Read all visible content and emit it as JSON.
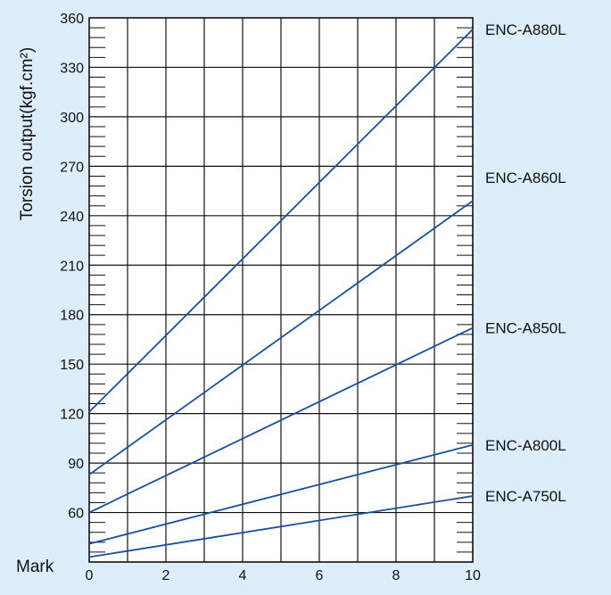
{
  "chart_data": {
    "type": "line",
    "title": "",
    "ylabel": "Torsion output(kgf.cm²)",
    "xlabel": "Mark",
    "xlim": [
      0,
      10
    ],
    "ylim": [
      30,
      360
    ],
    "x_ticks": [
      0,
      2,
      4,
      6,
      8,
      10
    ],
    "y_ticks": [
      60,
      90,
      120,
      150,
      180,
      210,
      240,
      270,
      300,
      330,
      360
    ],
    "grid": true,
    "legend": "series labels at right end of lines",
    "line_color": "#1a4fa0",
    "series": [
      {
        "name": "ENC-A880L",
        "x": [
          0,
          10
        ],
        "y": [
          121,
          353
        ]
      },
      {
        "name": "ENC-A860L",
        "x": [
          0,
          10
        ],
        "y": [
          83,
          249
        ]
      },
      {
        "name": "ENC-A850L",
        "x": [
          0,
          10
        ],
        "y": [
          60,
          172
        ]
      },
      {
        "name": "ENC-A800L",
        "x": [
          0,
          10
        ],
        "y": [
          41,
          101
        ]
      },
      {
        "name": "ENC-A750L",
        "x": [
          0,
          10
        ],
        "y": [
          33,
          70
        ]
      }
    ]
  }
}
